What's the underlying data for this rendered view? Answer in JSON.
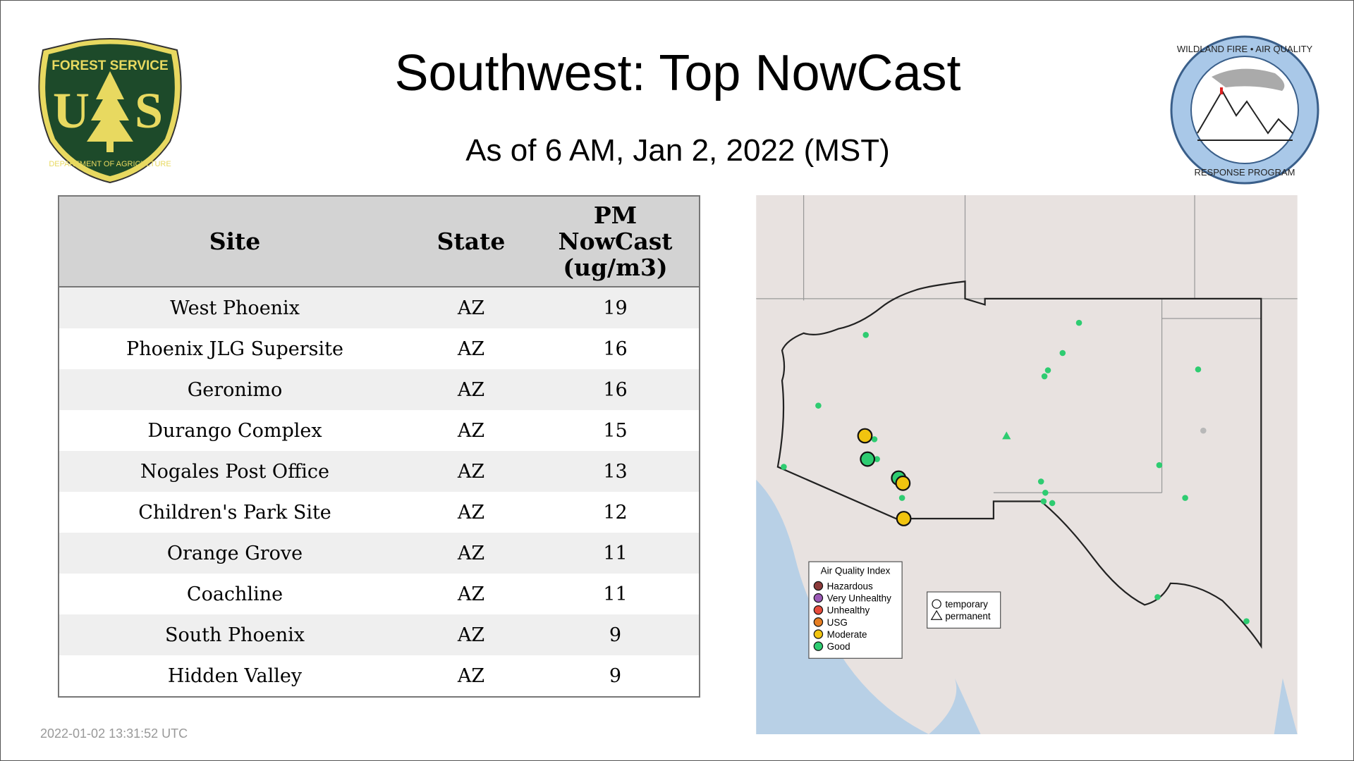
{
  "header": {
    "title": "Southwest: Top NowCast",
    "subtitle": "As of  6 AM, Jan  2, 2022 (MST)"
  },
  "logos": {
    "left": {
      "text_top": "FOREST SERVICE",
      "letters": "US",
      "text_bottom": "DEPARTMENT OF AGRICULTURE"
    },
    "right": {
      "text_top": "WILDLAND FIRE • AIR QUALITY",
      "text_bottom": "RESPONSE PROGRAM"
    }
  },
  "table": {
    "headers": [
      "Site",
      "State",
      "PM NowCast (ug/m3)"
    ],
    "header_lines": [
      "PM",
      "NowCast",
      "(ug/m3)"
    ],
    "rows": [
      {
        "site": "West Phoenix",
        "state": "AZ",
        "value": "19"
      },
      {
        "site": "Phoenix JLG Supersite",
        "state": "AZ",
        "value": "16"
      },
      {
        "site": "Geronimo",
        "state": "AZ",
        "value": "16"
      },
      {
        "site": "Durango Complex",
        "state": "AZ",
        "value": "15"
      },
      {
        "site": "Nogales Post Office",
        "state": "AZ",
        "value": "13"
      },
      {
        "site": "Children's Park Site",
        "state": "AZ",
        "value": "12"
      },
      {
        "site": "Orange Grove",
        "state": "AZ",
        "value": "11"
      },
      {
        "site": "Coachline",
        "state": "AZ",
        "value": "11"
      },
      {
        "site": "South Phoenix",
        "state": "AZ",
        "value": "9"
      },
      {
        "site": "Hidden Valley",
        "state": "AZ",
        "value": "9"
      }
    ]
  },
  "map": {
    "legend_aqi": {
      "title": "Air Quality Index",
      "items": [
        {
          "label": "Hazardous",
          "color": "#8b3a3a"
        },
        {
          "label": "Very Unhealthy",
          "color": "#9b59b6"
        },
        {
          "label": "Unhealthy",
          "color": "#e74c3c"
        },
        {
          "label": "USG",
          "color": "#e67e22"
        },
        {
          "label": "Moderate",
          "color": "#f1c40f"
        },
        {
          "label": "Good",
          "color": "#2ecc71"
        }
      ]
    },
    "legend_type": {
      "temporary": "temporary",
      "permanent": "permanent"
    },
    "colors": {
      "good": "#2ecc71",
      "moderate": "#f1c40f",
      "nodata": "#b8b8b8",
      "land": "#e8e2e0",
      "water": "#b8d0e6"
    }
  },
  "footer": {
    "timestamp": "2022-01-02 13:31:52 UTC"
  }
}
